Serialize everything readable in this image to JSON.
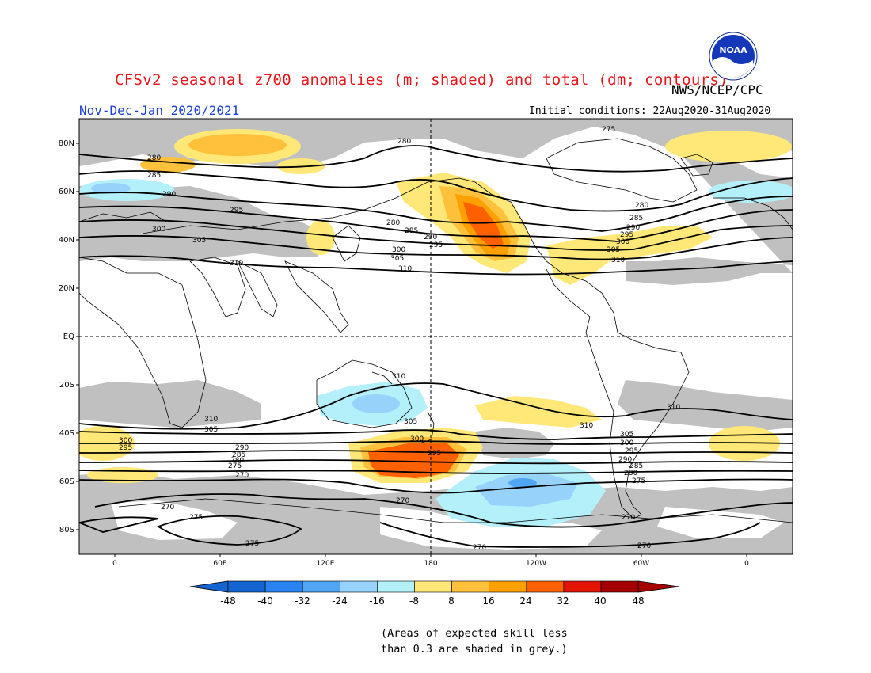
{
  "header": {
    "title": "CFSv2 seasonal z700 anomalies (m; shaded) and total (dm; contours)",
    "agency": "NWS/NCEP/CPC",
    "period": "Nov-Dec-Jan 2020/2021",
    "initial_conditions": "Initial conditions: 22Aug2020-31Aug2020",
    "logo_text": "NOAA"
  },
  "map": {
    "lat_labels": [
      "80N",
      "60N",
      "40N",
      "20N",
      "EQ",
      "20S",
      "40S",
      "60S",
      "80S"
    ],
    "lon_labels": [
      "0",
      "60E",
      "120E",
      "180",
      "120W",
      "60W",
      "0"
    ],
    "contour_labels": [
      "275",
      "280",
      "285",
      "290",
      "295",
      "300",
      "305",
      "310",
      "270"
    ],
    "contour_values_dm": [
      270,
      275,
      280,
      285,
      290,
      295,
      300,
      305,
      310
    ],
    "reference_lines": [
      "EQ",
      "180"
    ]
  },
  "colorbar": {
    "levels": [
      "-48",
      "-40",
      "-32",
      "-24",
      "-16",
      "-8",
      "8",
      "16",
      "24",
      "32",
      "40",
      "48"
    ],
    "colors": [
      "#1464d2",
      "#2882f0",
      "#50a5f5",
      "#96d2fa",
      "#b4f0fa",
      "#ffffff",
      "#ffe878",
      "#ffc03c",
      "#ffa000",
      "#ff6000",
      "#e11400",
      "#a50000"
    ]
  },
  "anomaly_colors": {
    "grey_skill": "#c0c0c0",
    "pos_light": "#ffe878",
    "pos_mid": "#ffc03c",
    "pos_strong": "#ffa000",
    "pos_orange": "#ff6000",
    "pos_red": "#e11400",
    "neg_light": "#b4f0fa",
    "neg_mid": "#96d2fa",
    "neg_strong": "#50a5f5"
  },
  "footnote": {
    "line1": "(Areas of expected skill less",
    "line2": "than 0.3 are shaded in grey.)"
  }
}
